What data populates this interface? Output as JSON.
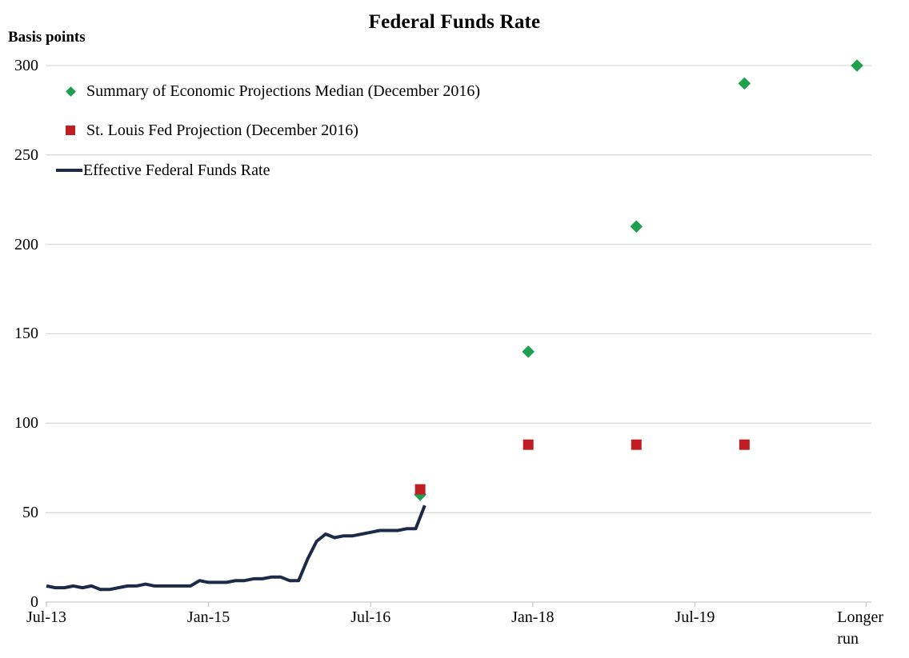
{
  "chart_data": {
    "type": "line",
    "title": "Federal Funds Rate",
    "y_axis_label": "Basis points",
    "ylim": [
      0,
      300
    ],
    "y_ticks": [
      0,
      50,
      100,
      150,
      200,
      250,
      300
    ],
    "grid": "horizontal-on",
    "legend_position": "top-left-inside",
    "x_unit": "months since Jul-2013",
    "x_ticks": [
      {
        "label": "Jul-13",
        "m": 0
      },
      {
        "label": "Jan-15",
        "m": 18
      },
      {
        "label": "Jul-16",
        "m": 36
      },
      {
        "label": "Jan-18",
        "m": 54
      },
      {
        "label": "Jul-19",
        "m": 72
      },
      {
        "label": "Longer run",
        "m": 91,
        "two_line": true
      }
    ],
    "series": [
      {
        "name": "Summary of Economic Projections Median (December 2016)",
        "type": "scatter",
        "marker": "diamond",
        "color": "#1fa04e",
        "points": [
          {
            "m": 41.5,
            "v": 60
          },
          {
            "m": 53.5,
            "v": 140
          },
          {
            "m": 65.5,
            "v": 210
          },
          {
            "m": 77.5,
            "v": 290
          },
          {
            "m": 90.0,
            "v": 300
          }
        ]
      },
      {
        "name": "St. Louis Fed Projection (December 2016)",
        "type": "scatter",
        "marker": "square",
        "color": "#bf1e24",
        "points": [
          {
            "m": 41.5,
            "v": 63
          },
          {
            "m": 53.5,
            "v": 88
          },
          {
            "m": 65.5,
            "v": 88
          },
          {
            "m": 77.5,
            "v": 88
          }
        ]
      },
      {
        "name": "Effective Federal Funds Rate",
        "type": "line",
        "color": "#1a2a47",
        "start_m": 0,
        "values": [
          9,
          8,
          8,
          9,
          8,
          9,
          7,
          7,
          8,
          9,
          9,
          10,
          9,
          9,
          9,
          9,
          9,
          12,
          11,
          11,
          11,
          12,
          12,
          13,
          13,
          14,
          14,
          12,
          12,
          24,
          34,
          38,
          36,
          37,
          37,
          38,
          39,
          40,
          40,
          40,
          41,
          41,
          54
        ]
      }
    ],
    "legend": [
      {
        "label": "Summary of Economic Projections Median (December 2016)",
        "marker": "diamond"
      },
      {
        "label": "St. Louis Fed Projection (December 2016)",
        "marker": "square"
      },
      {
        "label": "Effective Federal Funds Rate",
        "marker": "line"
      }
    ]
  },
  "colors": {
    "sep_green": "#1fa04e",
    "stl_red": "#bf1e24",
    "effr_navy": "#1a2a47",
    "gridline": "#d9d9d9",
    "axis_line": "#c9c9c9",
    "text": "#000000"
  }
}
